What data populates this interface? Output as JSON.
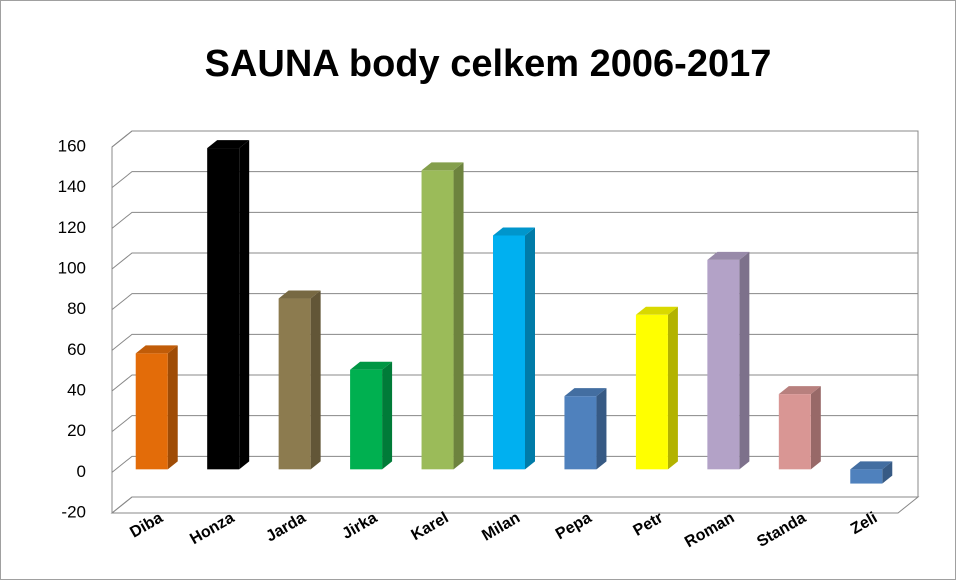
{
  "chart_data": {
    "type": "bar3d",
    "title": "SAUNA body celkem 2006-2017",
    "categories": [
      "Diba",
      "Honza",
      "Jarda",
      "Jirka",
      "Karel",
      "Milan",
      "Pepa",
      "Petr",
      "Roman",
      "Standa",
      "Zeli"
    ],
    "values": [
      57,
      158,
      84,
      49,
      147,
      115,
      36,
      76,
      103,
      37,
      -7
    ],
    "colors": [
      "#e36c09",
      "#000000",
      "#8c7b4f",
      "#00b050",
      "#9bbb59",
      "#00b0f0",
      "#4f81bd",
      "#ffff00",
      "#b3a2c7",
      "#d99694",
      "#4f81bd"
    ],
    "ylim": [
      -20,
      160
    ],
    "yticks": [
      -20,
      0,
      20,
      40,
      60,
      80,
      100,
      120,
      140,
      160
    ],
    "grid": true
  }
}
